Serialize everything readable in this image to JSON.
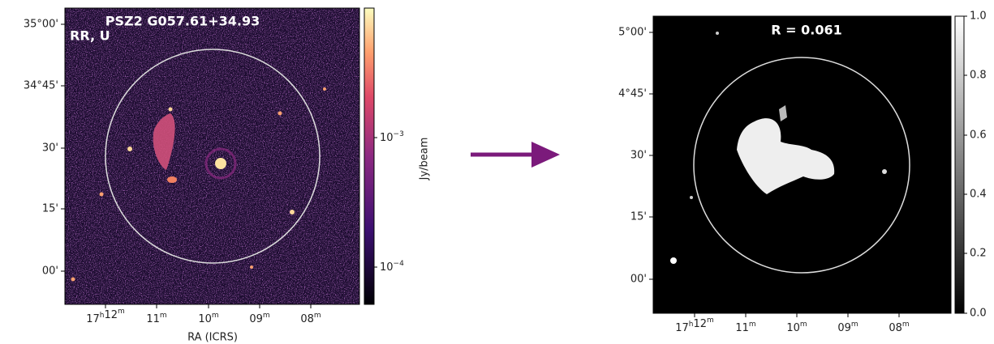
{
  "left_panel": {
    "title": "PSZ2 G057.61+34.93",
    "subtitle": "RR, U",
    "y_ticks": [
      "35°00'",
      "34°45'",
      "30'",
      "15'",
      "00'"
    ],
    "x_ticks": [
      [
        [
          "17",
          "h"
        ],
        [
          "12",
          "m"
        ]
      ],
      [
        [
          "11",
          "m"
        ]
      ],
      [
        [
          "10",
          "m"
        ]
      ],
      [
        [
          "09",
          "m"
        ]
      ],
      [
        [
          "08",
          "m"
        ]
      ]
    ],
    "x_label": "RA (ICRS)",
    "colorbar_ticks": [
      [
        [
          "10",
          "−3"
        ]
      ],
      [
        [
          "10",
          "−4"
        ]
      ]
    ],
    "colorbar_label": "Jy/beam"
  },
  "right_panel": {
    "title": "R = 0.061",
    "y_ticks": [
      "5°00'",
      "4°45'",
      "30'",
      "15'",
      "00'"
    ],
    "x_ticks": [
      [
        [
          "17",
          "h"
        ],
        [
          "12",
          "m"
        ]
      ],
      [
        [
          "11",
          "m"
        ]
      ],
      [
        [
          "10",
          "m"
        ]
      ],
      [
        [
          "09",
          "m"
        ]
      ],
      [
        [
          "08",
          "m"
        ]
      ]
    ],
    "colorbar_ticks": [
      "1.0",
      "0.8",
      "0.6",
      "0.4",
      "0.2",
      "0.0"
    ]
  }
}
